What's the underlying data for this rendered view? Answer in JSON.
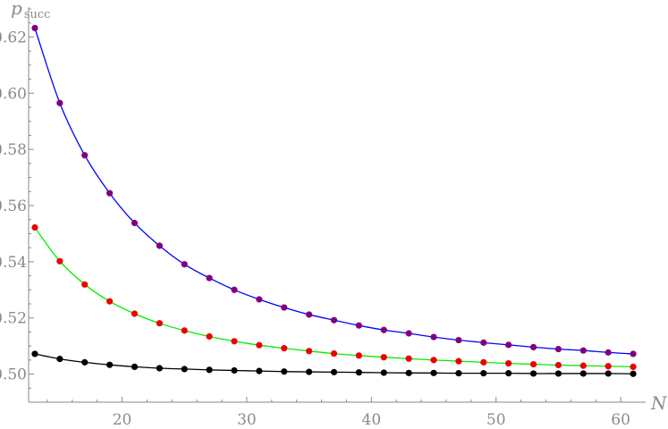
{
  "chart_data": {
    "type": "line",
    "xlabel": "N",
    "ylabel": {
      "main": "p",
      "sub": "succ"
    },
    "xlim": [
      12.5,
      62
    ],
    "ylim": [
      0.49,
      0.63
    ],
    "xticks": [
      20,
      30,
      40,
      50,
      60
    ],
    "yticks": [
      0.5,
      0.52,
      0.54,
      0.56,
      0.58,
      0.6,
      0.62
    ],
    "ytick_labels": [
      "0.50",
      "0.52",
      "0.54",
      "0.56",
      "0.58",
      "0.60",
      "0.62"
    ],
    "x": [
      13,
      15,
      17,
      19,
      21,
      23,
      25,
      27,
      29,
      31,
      33,
      35,
      37,
      39,
      41,
      43,
      45,
      47,
      49,
      51,
      53,
      55,
      57,
      59,
      61
    ],
    "series": [
      {
        "line_color": "#0000ff",
        "marker_color": "#800080",
        "values": [
          0.6232,
          0.5965,
          0.5779,
          0.5644,
          0.5538,
          0.5457,
          0.5391,
          0.5342,
          0.53,
          0.5266,
          0.5237,
          0.5212,
          0.5192,
          0.5173,
          0.5157,
          0.5145,
          0.5132,
          0.5121,
          0.5112,
          0.5104,
          0.5096,
          0.5089,
          0.5084,
          0.5077,
          0.5072
        ]
      },
      {
        "line_color": "#00ee00",
        "marker_color": "#ee0000",
        "values": [
          0.5522,
          0.5402,
          0.5319,
          0.5259,
          0.5215,
          0.5181,
          0.5155,
          0.5134,
          0.5117,
          0.5103,
          0.5092,
          0.5082,
          0.5073,
          0.5066,
          0.506,
          0.5055,
          0.505,
          0.5046,
          0.5042,
          0.5038,
          0.5035,
          0.5032,
          0.503,
          0.5028,
          0.5026
        ]
      },
      {
        "line_color": "#000000",
        "marker_color": "#000000",
        "values": [
          0.5072,
          0.5054,
          0.5042,
          0.5033,
          0.5026,
          0.5021,
          0.5018,
          0.5015,
          0.5013,
          0.5011,
          0.5009,
          0.5008,
          0.5007,
          0.5006,
          0.5005,
          0.5004,
          0.5004,
          0.5003,
          0.5003,
          0.5003,
          0.5002,
          0.5002,
          0.5002,
          0.5002,
          0.5001
        ]
      }
    ],
    "grid": false,
    "legend": "none"
  }
}
